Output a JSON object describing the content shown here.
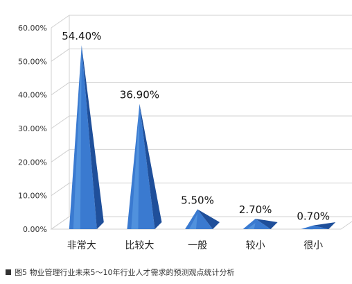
{
  "chart_data": {
    "type": "bar",
    "categories": [
      "非常大",
      "比较大",
      "一般",
      "较小",
      "很小"
    ],
    "values": [
      54.4,
      36.9,
      5.5,
      2.7,
      0.7
    ],
    "data_labels": [
      "54.40%",
      "36.90%",
      "5.50%",
      "2.70%",
      "0.70%"
    ],
    "yticks": [
      "0.00%",
      "10.00%",
      "20.00%",
      "30.00%",
      "40.00%",
      "50.00%",
      "60.00%"
    ],
    "ylim": [
      0,
      60
    ],
    "grid": true,
    "colors": {
      "light": "#5fa0e6",
      "mid": "#3a7ad0",
      "dark": "#1f4f9a",
      "grid": "#d0d0d0"
    }
  },
  "caption": "图5  物业管理行业未来5～10年行业人才需求的预测观点统计分析"
}
